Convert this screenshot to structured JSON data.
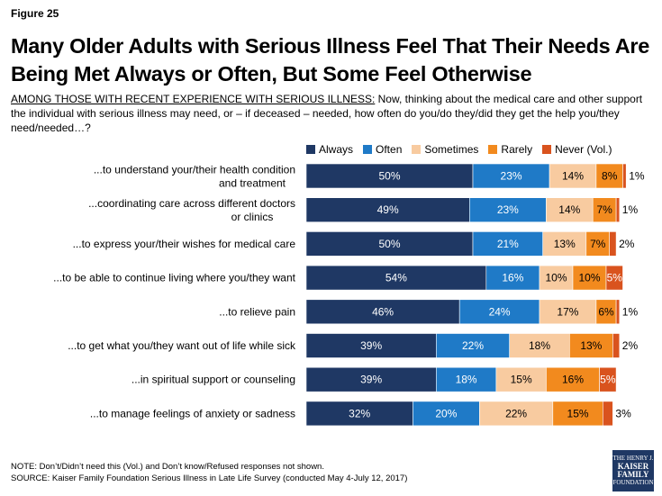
{
  "figure_label": "Figure 25",
  "title": "Many Older Adults with Serious Illness Feel That Their Needs Are Being Met Always or Often, But Some Feel Otherwise",
  "subtitle_prefix": "AMONG THOSE WITH RECENT EXPERIENCE WITH SERIOUS ILLNESS:",
  "subtitle_text": " Now, thinking about the medical care and other support the individual with serious illness may need, or – if deceased – needed, how often do you/do they/did they get the help you/they need/needed…?",
  "note": "NOTE: Don’t/Didn’t need this (Vol.) and Don’t know/Refused responses not shown.",
  "source": "SOURCE: Kaiser Family Foundation Serious Illness in Late Life Survey (conducted May 4-July 12, 2017)",
  "logo": {
    "line1": "THE HENRY J.",
    "line2": "KAISER",
    "line3": "FAMILY",
    "line4": "FOUNDATION"
  },
  "colors": {
    "Always": "#1f3864",
    "Often": "#1f7ac7",
    "Sometimes": "#f8cba0",
    "Rarely": "#f28a1e",
    "Never (Vol.)": "#d9531e"
  },
  "chart_data": {
    "type": "bar",
    "orientation": "horizontal",
    "stacked": true,
    "legend_position": "top",
    "categories": [
      "...to understand your/their health condition and treatment",
      "...coordinating care across different doctors or clinics",
      "...to express your/their wishes for medical care",
      "...to be able to continue living where you/they want",
      "...to relieve pain",
      "...to get what you/they want out of life while sick",
      "...in spiritual support or counseling",
      "...to manage feelings of anxiety or sadness"
    ],
    "series": [
      {
        "name": "Always",
        "values": [
          50,
          49,
          50,
          54,
          46,
          39,
          39,
          32
        ]
      },
      {
        "name": "Often",
        "values": [
          23,
          23,
          21,
          16,
          24,
          22,
          18,
          20
        ]
      },
      {
        "name": "Sometimes",
        "values": [
          14,
          14,
          13,
          10,
          17,
          18,
          15,
          22
        ]
      },
      {
        "name": "Rarely",
        "values": [
          8,
          7,
          7,
          10,
          6,
          13,
          16,
          15
        ]
      },
      {
        "name": "Never (Vol.)",
        "values": [
          1,
          1,
          2,
          5,
          1,
          2,
          5,
          3
        ]
      }
    ],
    "xlim": [
      0,
      100
    ]
  }
}
